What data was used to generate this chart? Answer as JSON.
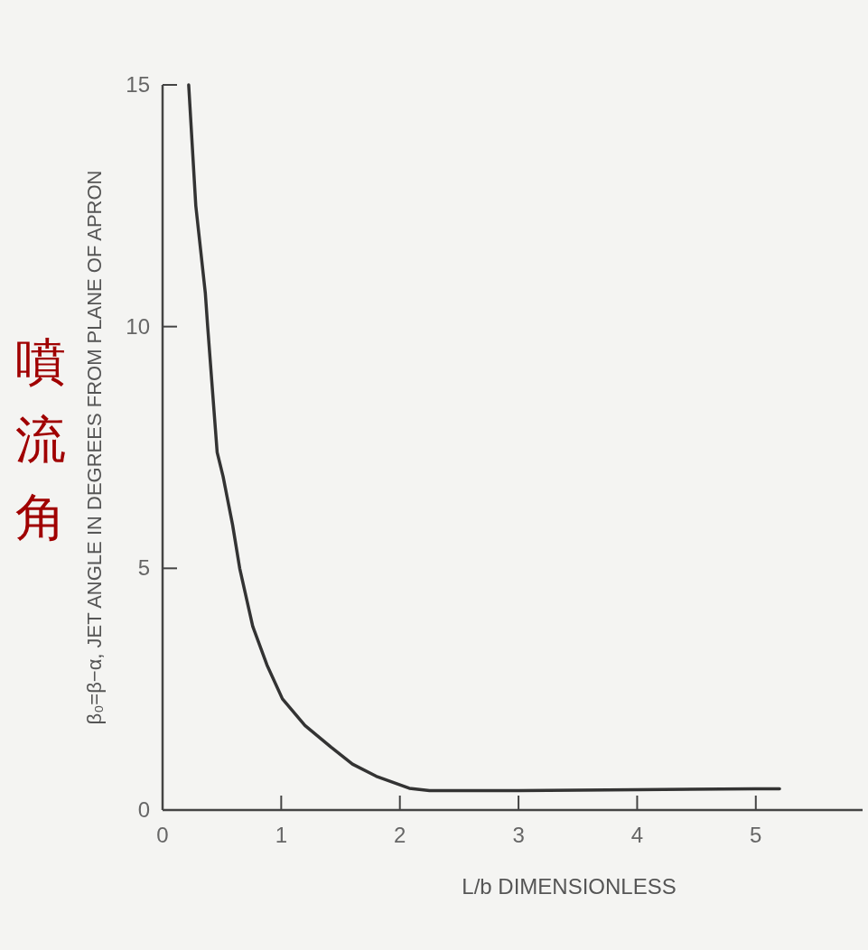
{
  "chart_data": {
    "type": "line",
    "xlabel": "L/b DIMENSIONLESS",
    "ylabel": "β₀=β−α, JET ANGLE IN DEGREES FROM PLANE OF APRON",
    "annotations": [
      "噴流角"
    ],
    "xlim": [
      0,
      5.9
    ],
    "ylim": [
      0,
      15
    ],
    "xticks": [
      0,
      1,
      2,
      3,
      4,
      5
    ],
    "yticks": [
      0,
      5,
      10,
      15
    ],
    "grid": false,
    "marker": "none",
    "line_style": "solid",
    "series": [
      {
        "color": "#333333",
        "x": [
          0.22,
          0.28,
          0.36,
          0.38,
          0.42,
          0.46,
          0.51,
          0.59,
          0.65,
          0.76,
          0.88,
          1.01,
          1.2,
          1.42,
          1.6,
          1.8,
          2.08,
          2.25,
          2.5,
          3,
          4,
          5,
          5.2
        ],
        "values": [
          15,
          12.5,
          10.7,
          10,
          8.7,
          7.4,
          6.9,
          5.9,
          5.0,
          3.8,
          3.0,
          2.3,
          1.75,
          1.3,
          0.95,
          0.7,
          0.45,
          0.4,
          0.4,
          0.4,
          0.42,
          0.44,
          0.44
        ]
      }
    ]
  }
}
